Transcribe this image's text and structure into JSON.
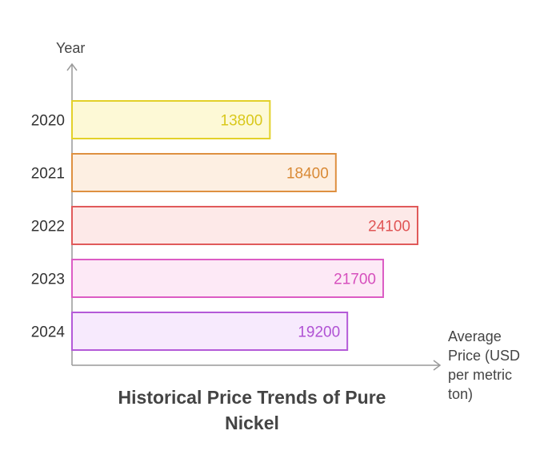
{
  "chart_data": {
    "type": "bar",
    "orientation": "horizontal",
    "title": "Historical Price Trends of Pure Nickel",
    "ylabel": "Year",
    "xlabel_lines": [
      "Average",
      "Price (USD",
      "per metric",
      "ton)"
    ],
    "categories": [
      "2020",
      "2021",
      "2022",
      "2023",
      "2024"
    ],
    "values": [
      13800,
      18400,
      24100,
      21700,
      19200
    ],
    "xlim": [
      0,
      24100
    ],
    "grid": false,
    "legend": "none",
    "colors": [
      {
        "fill": "#fdf9d6",
        "stroke": "#e3d12a",
        "text": "#d9c81c"
      },
      {
        "fill": "#fdefe2",
        "stroke": "#de9040",
        "text": "#d98a36"
      },
      {
        "fill": "#fde9e8",
        "stroke": "#e05a5a",
        "text": "#e05555"
      },
      {
        "fill": "#fde9f6",
        "stroke": "#dc5cc4",
        "text": "#d64fbd"
      },
      {
        "fill": "#f7eafd",
        "stroke": "#b45ad8",
        "text": "#b052d4"
      }
    ],
    "axis_color": "#999999"
  }
}
